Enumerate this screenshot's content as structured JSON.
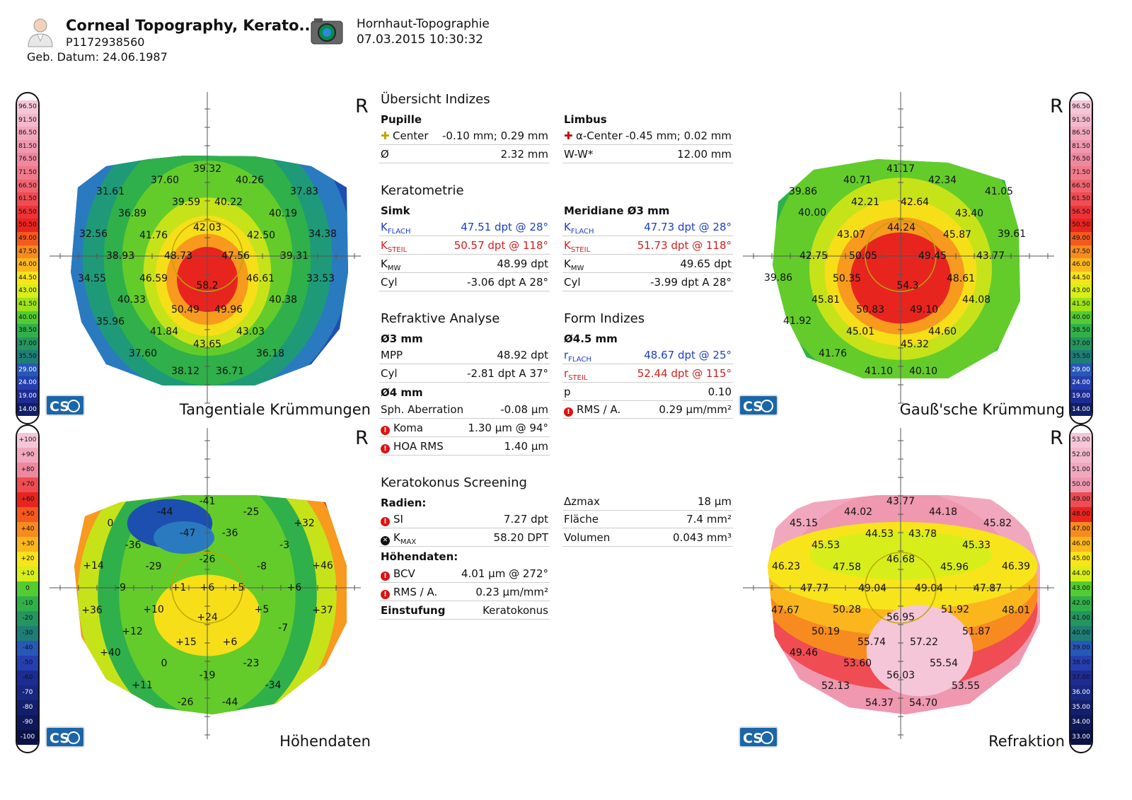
{
  "header": {
    "title": "Corneal  Topography, Kerato...",
    "patient_id": "P1172938560",
    "dob": "Geb. Datum: 24.06.1987",
    "exam_type": "Hornhaut-Topographie",
    "exam_datetime": "07.03.2015 10:30:32"
  },
  "eye": "R",
  "logo_text": "CS",
  "scales": {
    "curvature": [
      "96.50",
      "91.50",
      "86.50",
      "81.50",
      "76.50",
      "71.50",
      "66.50",
      "61.50",
      "56.50",
      "50.50",
      "49.00",
      "47.50",
      "46.00",
      "44.50",
      "43.00",
      "41.50",
      "40.00",
      "38.50",
      "37.00",
      "35.50",
      "29.00",
      "24.00",
      "19.00",
      "14.00"
    ],
    "elevation": [
      "+100",
      "+90",
      "+80",
      "+70",
      "+60",
      "+50",
      "+40",
      "+30",
      "+20",
      "+10",
      "0",
      "-10",
      "-20",
      "-30",
      "-40",
      "-50",
      "-60",
      "-70",
      "-80",
      "-90",
      "-100"
    ],
    "refraction": [
      "53.00",
      "52.00",
      "51.00",
      "50.00",
      "49.00",
      "48.00",
      "47.00",
      "46.00",
      "45.00",
      "44.00",
      "43.00",
      "42.00",
      "41.00",
      "40.00",
      "39.00",
      "38.00",
      "37.00",
      "36.00",
      "35.00",
      "34.00",
      "33.00"
    ],
    "colors_curv": [
      "#f5c6d8",
      "#f3b8cc",
      "#f1a8bf",
      "#ef98b0",
      "#ee889f",
      "#f07a8a",
      "#f06470",
      "#ef4c54",
      "#ed3338",
      "#e8241f",
      "#f45a1e",
      "#f78b1f",
      "#fbb61d",
      "#f8e41a",
      "#d8ee1a",
      "#9ee21a",
      "#53cc33",
      "#31b04a",
      "#24955e",
      "#1e7e76",
      "#2758b8",
      "#263fb0",
      "#1d2c92",
      "#101f66"
    ],
    "colors_elev": [
      "#f5c6d8",
      "#f1a8bf",
      "#ee889f",
      "#ef4c54",
      "#e8241f",
      "#f45a1e",
      "#f78b1f",
      "#fbb61d",
      "#f8e41a",
      "#d8ee1a",
      "#53cc33",
      "#31b04a",
      "#24955e",
      "#1e7e76",
      "#2758b8",
      "#263fb0",
      "#1d2c92",
      "#182780",
      "#131f6c",
      "#0f195a",
      "#0a1248"
    ],
    "colors_refr": [
      "#f5c6d8",
      "#f3b8cc",
      "#f1a8bf",
      "#ef98b0",
      "#ef4c54",
      "#e8241f",
      "#f78b1f",
      "#fbb61d",
      "#f8e41a",
      "#d8ee1a",
      "#53cc33",
      "#31b04a",
      "#24955e",
      "#1e7e76",
      "#2758b8",
      "#263fb0",
      "#1d2c92",
      "#182780",
      "#131f6c",
      "#0f195a",
      "#0a1248"
    ]
  },
  "maps": {
    "tangential": {
      "caption": "Tangentiale Krümmungen",
      "labels": [
        "39.32",
        "37.60",
        "40.26",
        "31.61",
        "37.83",
        "36.89",
        "39.59",
        "40.22",
        "40.19",
        "32.56",
        "42.03",
        "34.38",
        "41.76",
        "42.50",
        "38.93",
        "48.73",
        "47.56",
        "39.31",
        "34.55",
        "46.59",
        "46.61",
        "33.53",
        "58.2",
        "40.33",
        "40.38",
        "50.49",
        "49.96",
        "35.96",
        "43.03",
        "41.84",
        "43.65",
        "37.60",
        "36.18",
        "38.12",
        "36.71"
      ]
    },
    "gauss": {
      "caption": "Gauß'sche Krümmung",
      "labels": [
        "41.17",
        "40.71",
        "42.34",
        "41.05",
        "39.86",
        "40.00",
        "42.21",
        "42.64",
        "43.40",
        "43.07",
        "44.24",
        "45.87",
        "39.61",
        "42.75",
        "50.05",
        "49.45",
        "43.77",
        "50.35",
        "54.3",
        "48.61",
        "45.81",
        "50.83",
        "49.10",
        "44.08",
        "41.92",
        "45.01",
        "45.32",
        "44.60",
        "41.76",
        "41.10",
        "40.10",
        "39.86"
      ]
    },
    "elevation": {
      "caption": "Höhendaten",
      "labels": [
        "-41",
        "-44",
        "-25",
        "0",
        "+32",
        "-47",
        "-36",
        "-36",
        "-3",
        "+14",
        "-29",
        "-26",
        "-8",
        "+46",
        "-9",
        "+1",
        "+6",
        "+5",
        "+6",
        "+36",
        "+10",
        "+24",
        "+5",
        "+37",
        "+12",
        "+15",
        "+6",
        "-7",
        "+40",
        "0",
        "-23",
        "-19",
        "-34",
        "+11",
        "-26",
        "-44"
      ]
    },
    "refraction": {
      "caption": "Refraktion",
      "labels": [
        "43.77",
        "44.02",
        "44.18",
        "45.15",
        "45.82",
        "45.53",
        "44.53",
        "43.78",
        "45.33",
        "46.23",
        "46.68",
        "47.58",
        "45.96",
        "46.39",
        "47.77",
        "49.04",
        "49.04",
        "47.87",
        "47.67",
        "50.28",
        "56.95",
        "51.92",
        "48.01",
        "50.19",
        "51.87",
        "49.46",
        "55.74",
        "57.22",
        "53.60",
        "55.54",
        "52.13",
        "56.03",
        "53.55",
        "54.37",
        "54.70"
      ]
    }
  },
  "indices": {
    "title": "Übersicht Indizes",
    "pupille": {
      "label": "Pupille",
      "center_k": "Center",
      "center_v": "-0.10 mm; 0.29 mm",
      "dia_k": "Ø",
      "dia_v": "2.32 mm"
    },
    "limbus": {
      "label": "Limbus",
      "center_k": "α-Center",
      "center_v": "-0.45 mm; 0.02 mm",
      "ww_k": "W-W*",
      "ww_v": "12.00 mm"
    }
  },
  "keratometrie": {
    "title": "Keratometrie",
    "simk": {
      "label": "Simk",
      "kflach_k": "K",
      "kflach_sub": "FLACH",
      "kflach_v": "47.51 dpt @ 28°",
      "ksteil_k": "K",
      "ksteil_sub": "STEIL",
      "ksteil_v": "50.57 dpt @ 118°",
      "kmw_k": "K",
      "kmw_sub": "MW",
      "kmw_v": "48.99 dpt",
      "cyl_k": "Cyl",
      "cyl_v": "-3.06 dpt A 28°"
    },
    "merid": {
      "label": "Meridiane Ø3 mm",
      "kflach_v": "47.73 dpt @ 28°",
      "ksteil_v": "51.73 dpt @ 118°",
      "kmw_v": "49.65 dpt",
      "cyl_v": "-3.99 dpt A 28°"
    }
  },
  "refraktiv": {
    "title": "Refraktive Analyse",
    "d3": "Ø3 mm",
    "mpp_k": "MPP",
    "mpp_v": "48.92 dpt",
    "cyl_k": "Cyl",
    "cyl_v": "-2.81 dpt A 37°",
    "d4": "Ø4 mm",
    "sph_k": "Sph. Aberration",
    "sph_v": "-0.08 µm",
    "koma_k": "Koma",
    "koma_v": "1.30 µm @ 94°",
    "hoa_k": "HOA RMS",
    "hoa_v": "1.40 µm"
  },
  "form": {
    "title": "Form Indizes",
    "d45": "Ø4.5 mm",
    "rflach_k": "r",
    "rflach_sub": "FLACH",
    "rflach_v": "48.67 dpt @ 25°",
    "rsteil_k": "r",
    "rsteil_sub": "STEIL",
    "rsteil_v": "52.44 dpt @ 115°",
    "p_k": "p",
    "p_v": "0.10",
    "rms_k": "RMS / A.",
    "rms_v": "0.29 µm/mm²"
  },
  "screening": {
    "title": "Keratokonus Screening",
    "radien": "Radien:",
    "si_k": "SI",
    "si_v": "7.27 dpt",
    "kmax_k": "K",
    "kmax_sub": "MAX",
    "kmax_v": "58.20 DPT",
    "hoehen": "Höhendaten:",
    "bcv_k": "BCV",
    "bcv_v": "4.01 µm @ 272°",
    "rms_k": "RMS / A.",
    "rms_v": "0.23 µm/mm²",
    "einst_k": "Einstufung",
    "einst_v": "Keratokonus",
    "dz_k": "Δzmax",
    "dz_v": "18 µm",
    "fl_k": "Fläche",
    "fl_v": "7.4 mm²",
    "vol_k": "Volumen",
    "vol_v": "0.043 mm³"
  }
}
